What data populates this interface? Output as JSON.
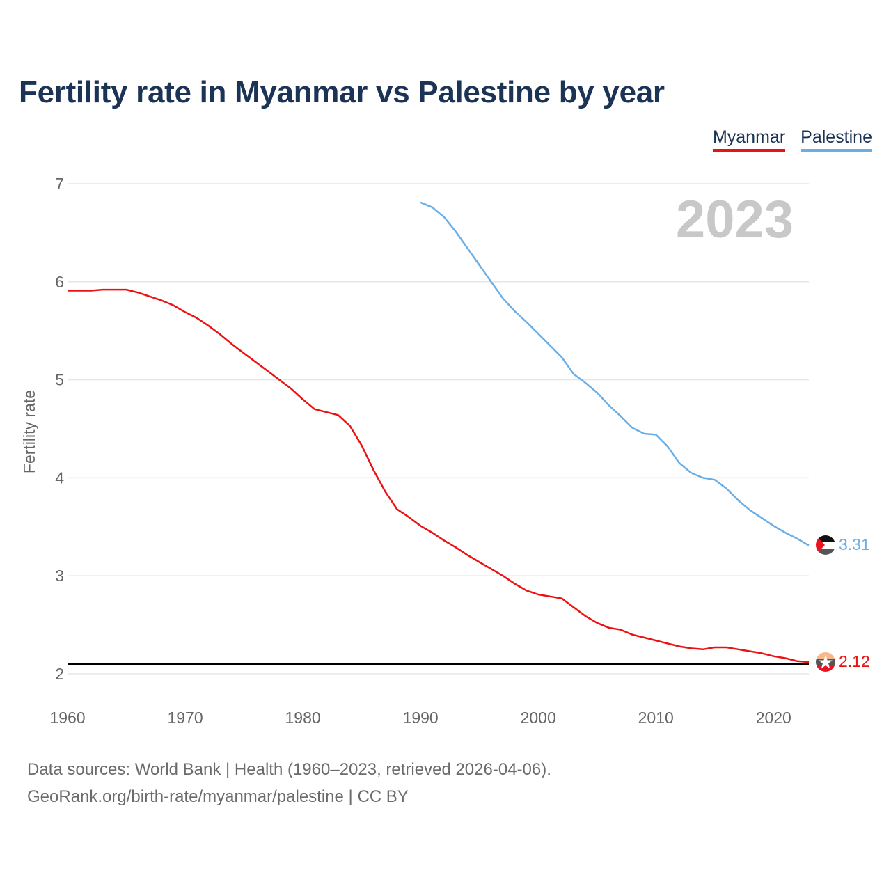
{
  "title": "Fertility rate in Myanmar vs Palestine by year",
  "legend": [
    {
      "label": "Myanmar",
      "color": "#ee1111"
    },
    {
      "label": "Palestine",
      "color": "#6aaee8"
    }
  ],
  "current_year": "2023",
  "source": {
    "line1": "Data sources: World Bank | Health (1960–2023, retrieved 2026-04-06).",
    "line2": "GeoRank.org/birth-rate/myanmar/palestine | CC BY"
  },
  "chart_data": {
    "type": "line",
    "title": "Fertility rate in Myanmar vs Palestine by year",
    "xlabel": "",
    "ylabel": "Fertility rate",
    "xlim": [
      1960,
      2023
    ],
    "ylim": [
      2,
      7
    ],
    "xticks": [
      1960,
      1970,
      1980,
      1990,
      2000,
      2010,
      2020
    ],
    "yticks": [
      2,
      3,
      4,
      5,
      6,
      7
    ],
    "reference_line": 2.1,
    "series": [
      {
        "name": "Myanmar",
        "color": "#ee1111",
        "end_label": "2.12",
        "flag_icon": "myanmar-flag-icon",
        "x": [
          1960,
          1961,
          1962,
          1963,
          1964,
          1965,
          1966,
          1967,
          1968,
          1969,
          1970,
          1971,
          1972,
          1973,
          1974,
          1975,
          1976,
          1977,
          1978,
          1979,
          1980,
          1981,
          1982,
          1983,
          1984,
          1985,
          1986,
          1987,
          1988,
          1989,
          1990,
          1991,
          1992,
          1993,
          1994,
          1995,
          1996,
          1997,
          1998,
          1999,
          2000,
          2001,
          2002,
          2003,
          2004,
          2005,
          2006,
          2007,
          2008,
          2009,
          2010,
          2011,
          2012,
          2013,
          2014,
          2015,
          2016,
          2017,
          2018,
          2019,
          2020,
          2021,
          2022,
          2023
        ],
        "values": [
          5.91,
          5.91,
          5.91,
          5.92,
          5.92,
          5.92,
          5.89,
          5.85,
          5.81,
          5.76,
          5.69,
          5.63,
          5.55,
          5.46,
          5.36,
          5.27,
          5.18,
          5.09,
          5.0,
          4.91,
          4.8,
          4.7,
          4.67,
          4.64,
          4.53,
          4.33,
          4.08,
          3.86,
          3.68,
          3.6,
          3.51,
          3.44,
          3.36,
          3.29,
          3.21,
          3.14,
          3.07,
          3.0,
          2.92,
          2.85,
          2.81,
          2.79,
          2.77,
          2.68,
          2.59,
          2.52,
          2.47,
          2.45,
          2.4,
          2.37,
          2.34,
          2.31,
          2.28,
          2.26,
          2.25,
          2.27,
          2.27,
          2.25,
          2.23,
          2.21,
          2.18,
          2.16,
          2.13,
          2.12
        ]
      },
      {
        "name": "Palestine",
        "color": "#6aaee8",
        "end_label": "3.31",
        "flag_icon": "palestine-flag-icon",
        "x": [
          1990,
          1991,
          1992,
          1993,
          1994,
          1995,
          1996,
          1997,
          1998,
          1999,
          2000,
          2001,
          2002,
          2003,
          2004,
          2005,
          2006,
          2007,
          2008,
          2009,
          2010,
          2011,
          2012,
          2013,
          2014,
          2015,
          2016,
          2017,
          2018,
          2019,
          2020,
          2021,
          2022,
          2023
        ],
        "values": [
          6.81,
          6.76,
          6.66,
          6.51,
          6.34,
          6.17,
          6.0,
          5.83,
          5.7,
          5.59,
          5.47,
          5.35,
          5.23,
          5.06,
          4.97,
          4.87,
          4.74,
          4.63,
          4.51,
          4.45,
          4.44,
          4.32,
          4.15,
          4.05,
          4.0,
          3.98,
          3.89,
          3.77,
          3.67,
          3.59,
          3.51,
          3.44,
          3.38,
          3.31
        ]
      }
    ]
  }
}
